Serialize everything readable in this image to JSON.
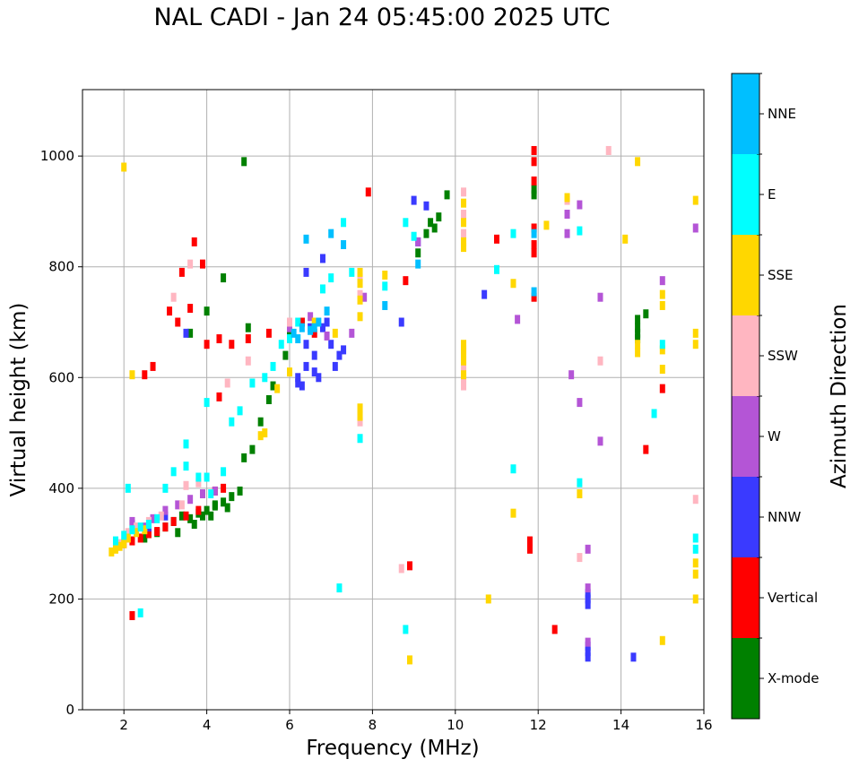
{
  "chart_data": {
    "type": "scatter",
    "title": "NAL CADI - Jan 24 05:45:00 2025 UTC",
    "xlabel": "Frequency (MHz)",
    "ylabel": "Virtual height (km)",
    "xlim": [
      1,
      16
    ],
    "ylim": [
      0,
      1120
    ],
    "xticks": [
      2,
      4,
      6,
      8,
      10,
      12,
      14,
      16
    ],
    "yticks": [
      0,
      200,
      400,
      600,
      800,
      1000
    ],
    "grid": true,
    "colorbar": {
      "label": "Azimuth Direction",
      "categories": [
        {
          "name": "X-mode",
          "color": "#008000"
        },
        {
          "name": "Vertical",
          "color": "#ff0000"
        },
        {
          "name": "NNW",
          "color": "#3a3aff"
        },
        {
          "name": "W",
          "color": "#b455d6"
        },
        {
          "name": "SSW",
          "color": "#ffb6c1"
        },
        {
          "name": "SSE",
          "color": "#ffd700"
        },
        {
          "name": "E",
          "color": "#00ffff"
        },
        {
          "name": "NNE",
          "color": "#00bfff"
        }
      ]
    },
    "series": [
      {
        "name": "X-mode",
        "points": [
          [
            3.0,
            330
          ],
          [
            3.2,
            340
          ],
          [
            3.4,
            350
          ],
          [
            3.6,
            345
          ],
          [
            3.8,
            355
          ],
          [
            4.0,
            360
          ],
          [
            4.2,
            370
          ],
          [
            4.4,
            375
          ],
          [
            4.6,
            385
          ],
          [
            4.8,
            395
          ],
          [
            3.3,
            320
          ],
          [
            3.7,
            335
          ],
          [
            4.1,
            350
          ],
          [
            4.5,
            365
          ],
          [
            2.8,
            320
          ],
          [
            2.5,
            310
          ],
          [
            4.9,
            455
          ],
          [
            5.1,
            470
          ],
          [
            5.3,
            520
          ],
          [
            5.5,
            560
          ],
          [
            5.6,
            585
          ],
          [
            5.9,
            640
          ],
          [
            6.0,
            680
          ],
          [
            6.3,
            700
          ],
          [
            4.0,
            720
          ],
          [
            4.4,
            780
          ],
          [
            5.0,
            690
          ],
          [
            3.6,
            680
          ],
          [
            4.9,
            990
          ],
          [
            9.5,
            870
          ],
          [
            9.6,
            890
          ],
          [
            9.4,
            880
          ],
          [
            9.3,
            860
          ],
          [
            9.8,
            930
          ],
          [
            9.1,
            825
          ],
          [
            11.9,
            930
          ],
          [
            11.9,
            940
          ],
          [
            14.4,
            690
          ],
          [
            14.4,
            705
          ],
          [
            14.4,
            670
          ],
          [
            14.4,
            680
          ],
          [
            14.6,
            715
          ],
          [
            3.9,
            350
          ],
          [
            4.2,
            368
          ],
          [
            2.2,
            335
          ]
        ]
      },
      {
        "name": "Vertical",
        "points": [
          [
            2.0,
            300
          ],
          [
            2.2,
            305
          ],
          [
            2.4,
            310
          ],
          [
            2.6,
            318
          ],
          [
            2.8,
            322
          ],
          [
            3.0,
            330
          ],
          [
            3.2,
            340
          ],
          [
            3.5,
            350
          ],
          [
            3.8,
            360
          ],
          [
            4.2,
            395
          ],
          [
            4.4,
            400
          ],
          [
            3.1,
            720
          ],
          [
            3.3,
            700
          ],
          [
            3.6,
            725
          ],
          [
            4.0,
            660
          ],
          [
            4.3,
            670
          ],
          [
            4.6,
            660
          ],
          [
            5.0,
            670
          ],
          [
            5.5,
            680
          ],
          [
            6.3,
            700
          ],
          [
            6.6,
            680
          ],
          [
            2.2,
            170
          ],
          [
            7.9,
            935
          ],
          [
            8.9,
            260
          ],
          [
            8.8,
            775
          ],
          [
            11.0,
            850
          ],
          [
            11.9,
            1010
          ],
          [
            11.9,
            990
          ],
          [
            11.9,
            955
          ],
          [
            11.9,
            870
          ],
          [
            11.9,
            840
          ],
          [
            11.9,
            825
          ],
          [
            11.9,
            745
          ],
          [
            11.8,
            305
          ],
          [
            11.8,
            290
          ],
          [
            12.4,
            145
          ],
          [
            14.6,
            470
          ],
          [
            15.0,
            580
          ],
          [
            3.7,
            845
          ],
          [
            3.9,
            805
          ],
          [
            3.4,
            790
          ],
          [
            4.3,
            565
          ],
          [
            2.5,
            605
          ],
          [
            2.7,
            620
          ]
        ]
      },
      {
        "name": "NNW",
        "points": [
          [
            6.2,
            590
          ],
          [
            6.2,
            600
          ],
          [
            6.4,
            620
          ],
          [
            6.6,
            640
          ],
          [
            6.7,
            600
          ],
          [
            6.4,
            660
          ],
          [
            6.5,
            690
          ],
          [
            6.8,
            690
          ],
          [
            7.0,
            660
          ],
          [
            7.2,
            640
          ],
          [
            6.3,
            585
          ],
          [
            6.6,
            610
          ],
          [
            6.9,
            700
          ],
          [
            7.1,
            620
          ],
          [
            7.3,
            650
          ],
          [
            6.4,
            790
          ],
          [
            6.8,
            815
          ],
          [
            8.7,
            700
          ],
          [
            9.0,
            920
          ],
          [
            9.1,
            845
          ],
          [
            9.3,
            910
          ],
          [
            10.7,
            750
          ],
          [
            13.2,
            210
          ],
          [
            13.2,
            200
          ],
          [
            13.2,
            190
          ],
          [
            13.2,
            115
          ],
          [
            13.2,
            95
          ],
          [
            13.2,
            105
          ],
          [
            14.3,
            95
          ],
          [
            3.5,
            680
          ],
          [
            2.6,
            330
          ],
          [
            3.0,
            350
          ]
        ]
      },
      {
        "name": "W",
        "points": [
          [
            2.5,
            330
          ],
          [
            2.7,
            345
          ],
          [
            3.0,
            360
          ],
          [
            3.3,
            370
          ],
          [
            3.6,
            380
          ],
          [
            3.9,
            390
          ],
          [
            4.2,
            395
          ],
          [
            6.0,
            690
          ],
          [
            6.5,
            710
          ],
          [
            6.9,
            675
          ],
          [
            7.5,
            680
          ],
          [
            7.8,
            745
          ],
          [
            9.1,
            845
          ],
          [
            12.7,
            895
          ],
          [
            12.7,
            860
          ],
          [
            13.0,
            912
          ],
          [
            12.8,
            605
          ],
          [
            13.2,
            290
          ],
          [
            13.2,
            220
          ],
          [
            13.2,
            122
          ],
          [
            13.5,
            745
          ],
          [
            13.5,
            485
          ],
          [
            15.0,
            775
          ],
          [
            15.8,
            870
          ],
          [
            11.5,
            705
          ],
          [
            13.0,
            555
          ],
          [
            2.2,
            340
          ]
        ]
      },
      {
        "name": "SSW",
        "points": [
          [
            1.9,
            300
          ],
          [
            2.1,
            320
          ],
          [
            2.3,
            330
          ],
          [
            2.6,
            340
          ],
          [
            2.9,
            350
          ],
          [
            3.4,
            370
          ],
          [
            3.5,
            405
          ],
          [
            3.8,
            410
          ],
          [
            4.5,
            590
          ],
          [
            5.0,
            630
          ],
          [
            6.0,
            700
          ],
          [
            7.7,
            780
          ],
          [
            7.7,
            750
          ],
          [
            7.7,
            520
          ],
          [
            8.7,
            255
          ],
          [
            10.2,
            935
          ],
          [
            10.2,
            895
          ],
          [
            10.2,
            860
          ],
          [
            10.2,
            650
          ],
          [
            10.2,
            620
          ],
          [
            10.2,
            600
          ],
          [
            10.2,
            585
          ],
          [
            12.7,
            920
          ],
          [
            13.0,
            275
          ],
          [
            13.5,
            630
          ],
          [
            13.7,
            1010
          ],
          [
            15.8,
            380
          ],
          [
            3.6,
            805
          ],
          [
            3.2,
            745
          ]
        ]
      },
      {
        "name": "SSE",
        "points": [
          [
            1.7,
            285
          ],
          [
            1.8,
            290
          ],
          [
            1.9,
            295
          ],
          [
            2.0,
            300
          ],
          [
            2.1,
            310
          ],
          [
            2.3,
            320
          ],
          [
            2.5,
            325
          ],
          [
            5.4,
            500
          ],
          [
            5.3,
            495
          ],
          [
            5.7,
            580
          ],
          [
            6.0,
            610
          ],
          [
            6.6,
            700
          ],
          [
            7.1,
            680
          ],
          [
            7.7,
            790
          ],
          [
            7.7,
            770
          ],
          [
            7.7,
            740
          ],
          [
            7.7,
            710
          ],
          [
            7.7,
            545
          ],
          [
            7.7,
            530
          ],
          [
            8.3,
            785
          ],
          [
            10.2,
            915
          ],
          [
            10.2,
            880
          ],
          [
            10.2,
            845
          ],
          [
            10.2,
            835
          ],
          [
            10.2,
            660
          ],
          [
            10.2,
            645
          ],
          [
            10.2,
            630
          ],
          [
            10.2,
            605
          ],
          [
            10.8,
            200
          ],
          [
            11.4,
            770
          ],
          [
            11.4,
            355
          ],
          [
            12.2,
            875
          ],
          [
            12.7,
            925
          ],
          [
            13.0,
            390
          ],
          [
            14.1,
            850
          ],
          [
            14.4,
            990
          ],
          [
            14.4,
            645
          ],
          [
            14.4,
            660
          ],
          [
            15.0,
            125
          ],
          [
            15.0,
            615
          ],
          [
            15.0,
            650
          ],
          [
            15.0,
            730
          ],
          [
            15.0,
            750
          ],
          [
            15.8,
            920
          ],
          [
            15.8,
            680
          ],
          [
            15.8,
            660
          ],
          [
            15.8,
            265
          ],
          [
            15.8,
            245
          ],
          [
            15.8,
            200
          ],
          [
            2.0,
            980
          ],
          [
            2.2,
            605
          ],
          [
            8.9,
            90
          ]
        ]
      },
      {
        "name": "E",
        "points": [
          [
            1.8,
            305
          ],
          [
            2.0,
            315
          ],
          [
            2.2,
            325
          ],
          [
            2.4,
            330
          ],
          [
            2.6,
            335
          ],
          [
            2.8,
            345
          ],
          [
            3.0,
            400
          ],
          [
            3.2,
            430
          ],
          [
            3.5,
            440
          ],
          [
            3.8,
            420
          ],
          [
            4.0,
            420
          ],
          [
            4.1,
            390
          ],
          [
            4.4,
            430
          ],
          [
            4.6,
            520
          ],
          [
            4.8,
            540
          ],
          [
            5.1,
            590
          ],
          [
            5.4,
            600
          ],
          [
            5.6,
            620
          ],
          [
            5.8,
            660
          ],
          [
            6.0,
            670
          ],
          [
            6.2,
            700
          ],
          [
            6.8,
            760
          ],
          [
            7.0,
            780
          ],
          [
            7.3,
            880
          ],
          [
            7.5,
            790
          ],
          [
            7.7,
            490
          ],
          [
            8.3,
            765
          ],
          [
            8.8,
            880
          ],
          [
            8.8,
            145
          ],
          [
            9.0,
            855
          ],
          [
            11.0,
            795
          ],
          [
            11.4,
            860
          ],
          [
            11.4,
            435
          ],
          [
            7.2,
            220
          ],
          [
            2.4,
            175
          ],
          [
            13.0,
            865
          ],
          [
            13.0,
            410
          ],
          [
            14.8,
            535
          ],
          [
            15.0,
            660
          ],
          [
            15.8,
            310
          ],
          [
            15.8,
            290
          ],
          [
            4.0,
            555
          ],
          [
            3.5,
            480
          ],
          [
            2.1,
            400
          ]
        ]
      },
      {
        "name": "NNE",
        "points": [
          [
            6.1,
            680
          ],
          [
            6.3,
            690
          ],
          [
            6.5,
            685
          ],
          [
            6.7,
            700
          ],
          [
            6.9,
            720
          ],
          [
            7.3,
            840
          ],
          [
            7.0,
            860
          ],
          [
            6.4,
            850
          ],
          [
            11.9,
            860
          ],
          [
            11.9,
            755
          ],
          [
            9.1,
            805
          ],
          [
            8.3,
            730
          ],
          [
            6.6,
            690
          ],
          [
            6.2,
            670
          ]
        ]
      }
    ]
  }
}
